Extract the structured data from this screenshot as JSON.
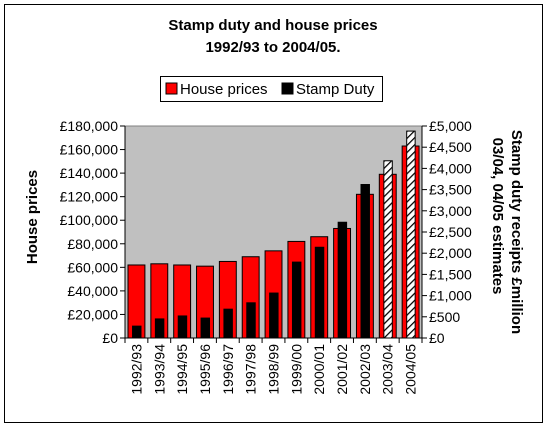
{
  "chart_data": {
    "type": "bar",
    "title_line1": "Stamp duty and house prices",
    "title_line2": "1992/93 to 2004/05.",
    "ylabel": "House prices",
    "y2label_line1": "Stamp duty receipts £million",
    "y2label_line2": "03/04, 04/05 estimates",
    "ylim": [
      0,
      180000
    ],
    "y2lim": [
      0,
      5000
    ],
    "y_ticks": [
      "£0",
      "£20,000",
      "£40,000",
      "£60,000",
      "£80,000",
      "£100,000",
      "£120,000",
      "£140,000",
      "£160,000",
      "£180,000"
    ],
    "y2_ticks": [
      "£0",
      "£500",
      "£1,000",
      "£1,500",
      "£2,000",
      "£2,500",
      "£3,000",
      "£3,500",
      "£4,000",
      "£4,500",
      "£5,000"
    ],
    "categories": [
      "1992/93",
      "1993/94",
      "1994/95",
      "1995/96",
      "1996/97",
      "1997/98",
      "1998/99",
      "1999/00",
      "2000/01",
      "2001/02",
      "2002/03",
      "2003/04",
      "2004/05"
    ],
    "legend_placement": "top-center",
    "grid": false,
    "plot_background": "#c0c0c0",
    "series": [
      {
        "name": "House prices",
        "axis": "left",
        "color": "#ff0000",
        "values": [
          62000,
          63000,
          62000,
          61000,
          65000,
          69000,
          74000,
          82000,
          86000,
          93000,
          122000,
          139000,
          163000
        ]
      },
      {
        "name": "Stamp Duty",
        "axis": "right",
        "color": "#000000",
        "estimate_pattern": "hatched",
        "estimate_categories": [
          "2003/04",
          "2004/05"
        ],
        "values": [
          280,
          450,
          520,
          470,
          680,
          830,
          1060,
          1790,
          2140,
          2730,
          3620,
          4180,
          4880
        ]
      }
    ]
  }
}
